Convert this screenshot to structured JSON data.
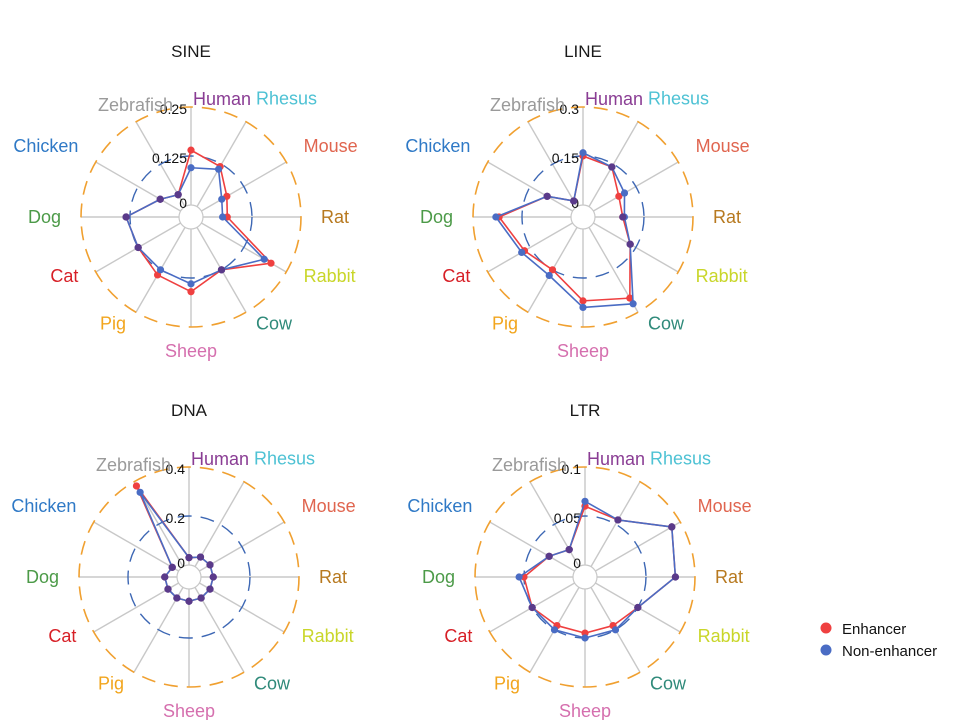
{
  "species": [
    "Human",
    "Rhesus",
    "Mouse",
    "Rat",
    "Rabbit",
    "Cow",
    "Sheep",
    "Pig",
    "Cat",
    "Dog",
    "Chicken",
    "Zebrafish"
  ],
  "species_colors": {
    "Human": "#8a3d94",
    "Rhesus": "#4ec2d4",
    "Mouse": "#e0654f",
    "Rat": "#b7791f",
    "Rabbit": "#c9d62a",
    "Cow": "#2f8a7a",
    "Sheep": "#d56fae",
    "Pig": "#f2a51d",
    "Cat": "#d71f26",
    "Dog": "#4c9a48",
    "Chicken": "#2f79c6",
    "Zebrafish": "#9a9a9a"
  },
  "colors": {
    "enhancer": "#ef4040",
    "non_enhancer": "#4a6cc4",
    "outer_ring": "#f0a030",
    "inner_ring": "#3d67b4",
    "spoke": "#c8c8c8"
  },
  "legend": [
    {
      "label": "Enhancer",
      "color": "#ef4040"
    },
    {
      "label": "Non-enhancer",
      "color": "#4a6cc4"
    }
  ],
  "chart_data": [
    {
      "type": "radar",
      "title": "SINE",
      "ticks": [
        "0",
        "0.125",
        "0.25"
      ],
      "rmax": 0.25,
      "series": [
        {
          "name": "Enhancer",
          "values": [
            0.14,
            0.118,
            0.075,
            0.062,
            0.205,
            0.125,
            0.16,
            0.14,
            0.125,
            0.135,
            0.06,
            0.035
          ]
        },
        {
          "name": "Non-enhancer",
          "values": [
            0.095,
            0.11,
            0.06,
            0.05,
            0.185,
            0.125,
            0.14,
            0.125,
            0.125,
            0.135,
            0.06,
            0.035
          ]
        }
      ]
    },
    {
      "type": "radar",
      "title": "LINE",
      "ticks": [
        "0",
        "0.15",
        "0.3"
      ],
      "rmax": 0.3,
      "series": [
        {
          "name": "Enhancer",
          "values": [
            0.15,
            0.14,
            0.09,
            0.085,
            0.13,
            0.25,
            0.22,
            0.15,
            0.17,
            0.22,
            0.09,
            0.02
          ]
        },
        {
          "name": "Non-enhancer",
          "values": [
            0.16,
            0.14,
            0.11,
            0.09,
            0.13,
            0.27,
            0.24,
            0.17,
            0.18,
            0.23,
            0.09,
            0.02
          ]
        }
      ]
    },
    {
      "type": "radar",
      "title": "DNA",
      "ticks": [
        "0",
        "0.2",
        "0.4"
      ],
      "rmax": 0.4,
      "series": [
        {
          "name": "Enhancer",
          "values": [
            0.03,
            0.045,
            0.05,
            0.05,
            0.05,
            0.05,
            0.05,
            0.05,
            0.05,
            0.05,
            0.03,
            0.38
          ]
        },
        {
          "name": "Non-enhancer",
          "values": [
            0.03,
            0.045,
            0.05,
            0.05,
            0.05,
            0.05,
            0.05,
            0.05,
            0.05,
            0.05,
            0.03,
            0.35
          ]
        }
      ]
    },
    {
      "type": "radar",
      "title": "LTR",
      "ticks": [
        "0",
        "0.05",
        "0.1"
      ],
      "rmax": 0.1,
      "series": [
        {
          "name": "Enhancer",
          "values": [
            0.06,
            0.055,
            0.09,
            0.08,
            0.05,
            0.045,
            0.045,
            0.045,
            0.05,
            0.05,
            0.03,
            0.02
          ]
        },
        {
          "name": "Non-enhancer",
          "values": [
            0.065,
            0.055,
            0.09,
            0.08,
            0.05,
            0.05,
            0.05,
            0.05,
            0.05,
            0.055,
            0.03,
            0.02
          ]
        }
      ]
    }
  ]
}
